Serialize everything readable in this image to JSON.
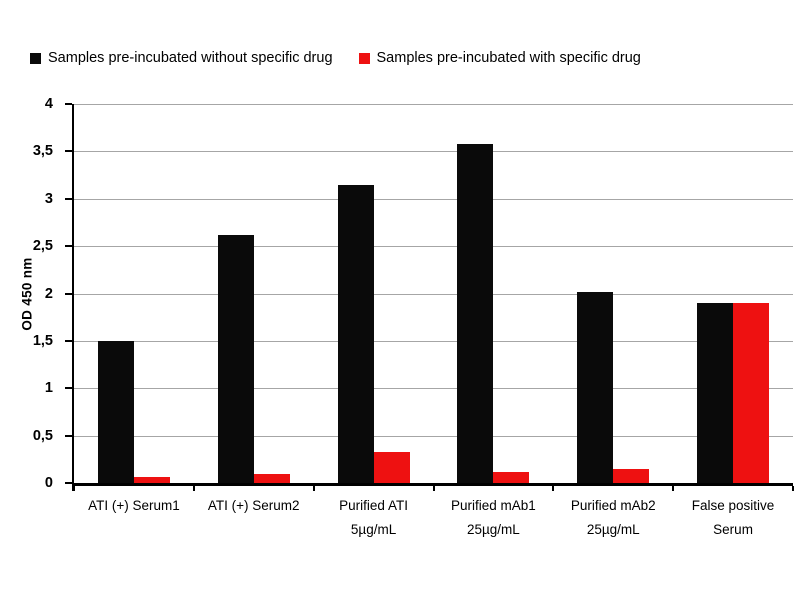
{
  "figure": {
    "background": "#ffffff"
  },
  "chart_data": {
    "type": "bar",
    "title": "",
    "xlabel": "",
    "ylabel": "OD 450 nm",
    "ylim": [
      0,
      4
    ],
    "grid": true,
    "gridline_color": "#a6a6a6",
    "axis_color": "#000000",
    "legend_position": "top",
    "decimal_separator": ",",
    "yticks": [
      {
        "value": 0,
        "label": "0"
      },
      {
        "value": 0.5,
        "label": "0,5"
      },
      {
        "value": 1,
        "label": "1"
      },
      {
        "value": 1.5,
        "label": "1,5"
      },
      {
        "value": 2,
        "label": "2"
      },
      {
        "value": 2.5,
        "label": "2,5"
      },
      {
        "value": 3,
        "label": "3"
      },
      {
        "value": 3.5,
        "label": "3,5"
      },
      {
        "value": 4,
        "label": "4"
      }
    ],
    "categories": [
      "ATI (+) Serum1",
      "ATI (+) Serum2",
      "Purified ATI 5µg/mL",
      "Purified mAb1 25µg/mL",
      "Purified mAb2 25µg/mL",
      "False positive Serum"
    ],
    "category_display": [
      "ATI (+) Serum1",
      "ATI (+) Serum2",
      "Purified ATI\n5µg/mL",
      "Purified mAb1\n25µg/mL",
      "Purified mAb2\n25µg/mL",
      "False positive\nSerum"
    ],
    "series": [
      {
        "key": "without-drug",
        "name": "Samples pre-incubated without specific drug",
        "color": "#0a0a0a",
        "values": [
          1.5,
          2.62,
          3.15,
          3.58,
          2.02,
          1.9
        ]
      },
      {
        "key": "with-drug",
        "name": "Samples pre-incubated with specific drug",
        "color": "#ee1111",
        "values": [
          0.06,
          0.09,
          0.33,
          0.12,
          0.15,
          1.9
        ]
      }
    ]
  }
}
